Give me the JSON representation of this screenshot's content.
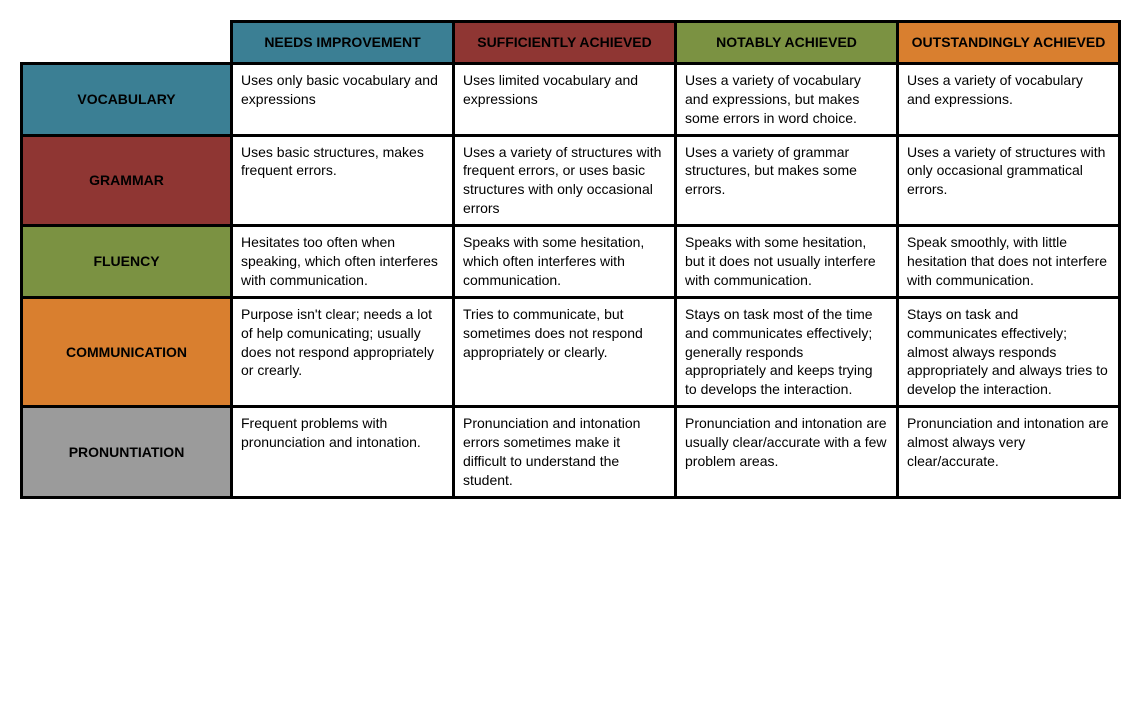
{
  "colors": {
    "teal": "#3b7f94",
    "darkred": "#8f3633",
    "olive": "#7b9242",
    "orange": "#d97f2f",
    "gray": "#9b9b9b",
    "white": "#ffffff",
    "black": "#000000"
  },
  "columns": [
    {
      "label": "NEEDS IMPROVEMENT",
      "colorKey": "teal"
    },
    {
      "label": "SUFFICIENTLY ACHIEVED",
      "colorKey": "darkred"
    },
    {
      "label": "NOTABLY ACHIEVED",
      "colorKey": "olive"
    },
    {
      "label": "OUTSTANDINGLY ACHIEVED",
      "colorKey": "orange"
    }
  ],
  "rows": [
    {
      "label": "VOCABULARY",
      "colorKey": "teal",
      "cells": [
        "Uses only basic vocabulary and expressions",
        "Uses limited vocabulary and expressions",
        "Uses a variety of vocabulary and expressions, but makes some errors in word choice.",
        "Uses a variety of vocabulary and expressions."
      ]
    },
    {
      "label": "GRAMMAR",
      "colorKey": "darkred",
      "cells": [
        "Uses basic structures, makes frequent errors.",
        "Uses a variety of structures with frequent errors, or uses basic structures with only occasional errors",
        "Uses a variety of grammar structures, but makes some errors.",
        "Uses a variety of structures with only occasional grammatical errors."
      ]
    },
    {
      "label": "FLUENCY",
      "colorKey": "olive",
      "cells": [
        "Hesitates too often when speaking, which often interferes with communication.",
        "Speaks with some hesitation, which often interferes with communication.",
        "Speaks with some hesitation, but it does not usually interfere with communication.",
        "Speak smoothly, with little hesitation that does not interfere with communication."
      ]
    },
    {
      "label": "COMMUNICATION",
      "colorKey": "orange",
      "cells": [
        "Purpose isn't clear; needs a lot of help comunicating; usually does not respond appropriately or crearly.",
        "Tries to communicate, but sometimes does not respond appropriately or clearly.",
        "Stays on task most of the time and communicates effectively; generally responds appropriately and keeps trying to develops the interaction.",
        "Stays on task and communicates effectively; almost always responds appropriately and always tries to develop the interaction."
      ]
    },
    {
      "label": "PRONUNTIATION",
      "colorKey": "gray",
      "cells": [
        "Frequent problems with pronunciation and intonation.",
        "Pronunciation and intonation errors sometimes make it difficult to understand the student.",
        "Pronunciation and intonation are usually clear/accurate with a few problem areas.",
        "Pronunciation and intonation are almost always very clear/accurate."
      ]
    }
  ]
}
